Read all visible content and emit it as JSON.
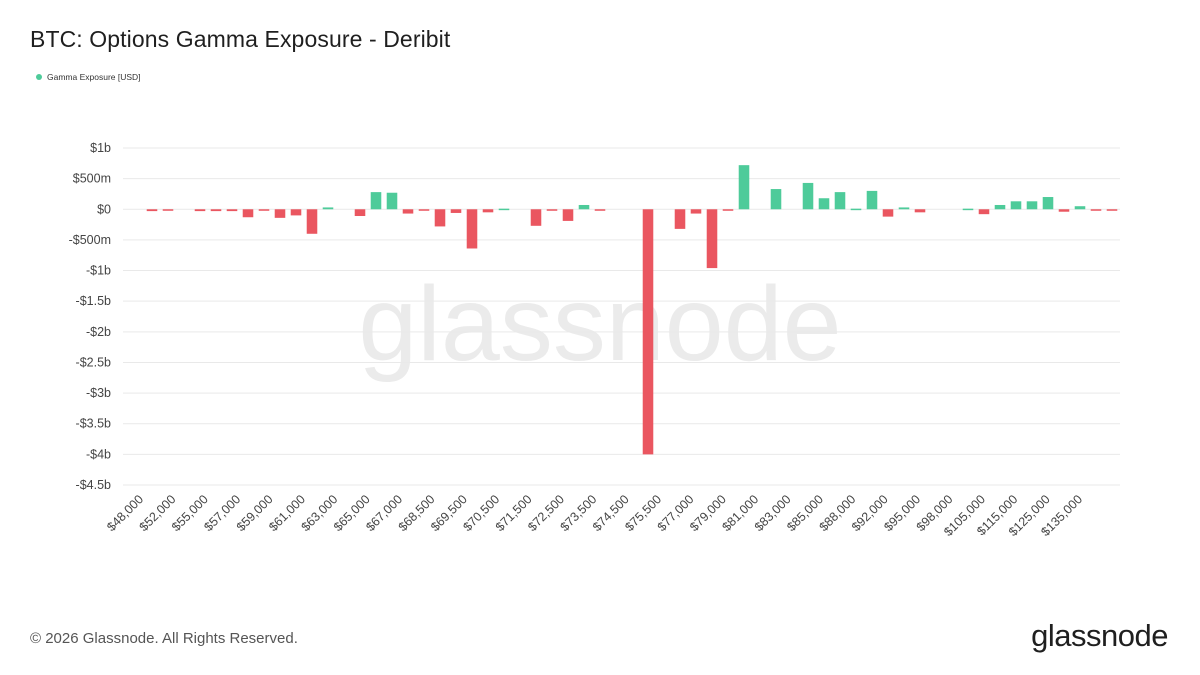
{
  "title": "BTC: Options Gamma Exposure - Deribit",
  "legend": {
    "label": "Gamma Exposure [USD]",
    "color": "#4ecb9a"
  },
  "footer": {
    "copyright": "© 2026 Glassnode. All Rights Reserved.",
    "brand": "glassnode"
  },
  "watermark": "glassnode",
  "colors": {
    "positive": "#4ecb9a",
    "negative": "#ea5660",
    "grid": "#e9e9e9",
    "tick_text": "#444444",
    "watermark": "#ebebeb"
  },
  "chart_data": {
    "type": "bar",
    "series": [
      {
        "name": "Gamma Exposure [USD]"
      }
    ],
    "ylim": [
      -4500,
      1000
    ],
    "y_unit": "millions USD",
    "y_ticks": [
      {
        "value": 1000,
        "label": "$1b"
      },
      {
        "value": 500,
        "label": "$500m"
      },
      {
        "value": 0,
        "label": "$0"
      },
      {
        "value": -500,
        "label": "-$500m"
      },
      {
        "value": -1000,
        "label": "-$1b"
      },
      {
        "value": -1500,
        "label": "-$1.5b"
      },
      {
        "value": -2000,
        "label": "-$2b"
      },
      {
        "value": -2500,
        "label": "-$2.5b"
      },
      {
        "value": -3000,
        "label": "-$3b"
      },
      {
        "value": -3500,
        "label": "-$3.5b"
      },
      {
        "value": -4000,
        "label": "-$4b"
      },
      {
        "value": -4500,
        "label": "-$4.5b"
      }
    ],
    "x_tick_labels": [
      "$48,000",
      "$52,000",
      "$55,000",
      "$57,000",
      "$59,000",
      "$61,000",
      "$63,000",
      "$65,000",
      "$67,000",
      "$68,500",
      "$69,500",
      "$70,500",
      "$71,500",
      "$72,500",
      "$73,500",
      "$74,500",
      "$75,500",
      "$77,000",
      "$79,000",
      "$81,000",
      "$83,000",
      "$85,000",
      "$88,000",
      "$92,000",
      "$95,000",
      "$98,000",
      "$105,000",
      "$115,000",
      "$125,000",
      "$135,000"
    ],
    "values": [
      0,
      -30,
      -20,
      0,
      -30,
      -30,
      -30,
      -130,
      -20,
      -140,
      -100,
      -400,
      30,
      0,
      -110,
      280,
      270,
      -70,
      -10,
      -280,
      -60,
      -640,
      -50,
      10,
      0,
      -270,
      -20,
      -190,
      70,
      -10,
      0,
      0,
      -4000,
      0,
      -320,
      -70,
      -960,
      -20,
      720,
      0,
      330,
      0,
      430,
      180,
      280,
      10,
      300,
      -120,
      30,
      -50,
      0,
      0,
      10,
      -80,
      70,
      130,
      130,
      200,
      -40,
      50,
      -20,
      -20
    ],
    "grid": true,
    "legend_position": "top-left"
  }
}
